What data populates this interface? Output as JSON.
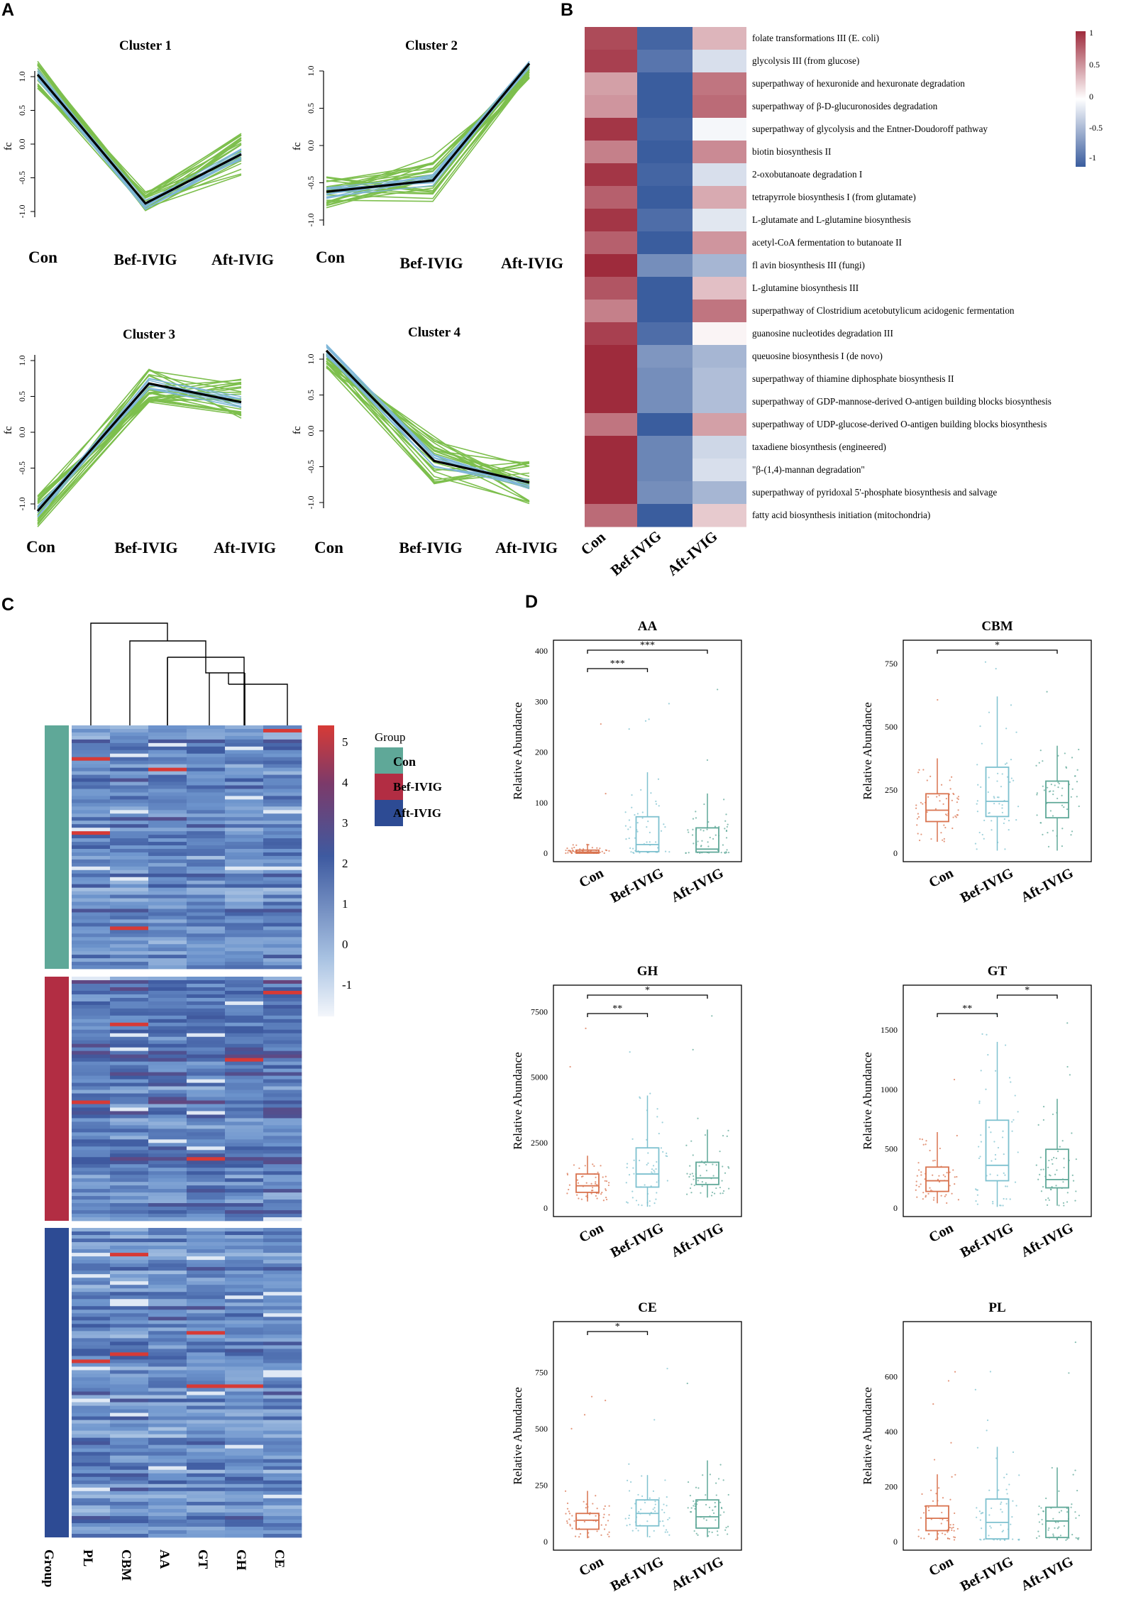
{
  "panels": {
    "A": {
      "letter": "A",
      "group_labels": [
        "Con",
        "Bef-IVIG",
        "Aft-IVIG"
      ],
      "y_axis_label": "fc",
      "y_ticks": [
        "1.0",
        "0.5",
        "0.0",
        "-0.5",
        "-1.0"
      ],
      "clusters": [
        {
          "title": "Cluster 1",
          "mean": [
            1.03,
            -0.88,
            -0.15
          ]
        },
        {
          "title": "Cluster 2",
          "mean": [
            -0.62,
            -0.47,
            1.1
          ]
        },
        {
          "title": "Cluster 3",
          "mean": [
            -1.1,
            0.68,
            0.42
          ]
        },
        {
          "title": "Cluster 4",
          "mean": [
            1.12,
            -0.42,
            -0.72
          ]
        }
      ]
    },
    "B": {
      "letter": "B",
      "columns": [
        "Con",
        "Bef-IVIG",
        "Aft-IVIG"
      ],
      "legend_ticks": [
        "1",
        "0.5",
        "0",
        "-0.5",
        "-1"
      ],
      "rows": [
        "folate transformations III (E. coli)",
        "glycolysis III (from glucose)",
        "superpathway of hexuronide and hexuronate degradation",
        "superpathway of &beta;-D-glucuronosides degradation",
        "superpathway of glycolysis and the Entner-Doudoroff pathway",
        "biotin biosynthesis II",
        "2-oxobutanoate degradation I",
        "tetrapyrrole biosynthesis I (from glutamate)",
        "L-glutamate and L-glutamine biosynthesis",
        "acetyl-CoA fermentation to butanoate II",
        "fl avin biosynthesis III (fungi)",
        "L-glutamine biosynthesis III",
        "superpathway of Clostridium acetobutylicum acidogenic fermentation",
        "guanosine nucleotides degradation III",
        "queuosine biosynthesis I (de novo)",
        "superpathway of thiamine diphosphate biosynthesis II",
        "superpathway of GDP-mannose-derived O-antigen building blocks biosynthesis",
        "superpathway of UDP-glucose-derived O-antigen building blocks biosynthesis",
        "taxadiene biosynthesis (engineered)",
        "\"&beta;-(1,4)-mannan degradation\"",
        "superpathway of pyridoxal 5'-phosphate biosynthesis and salvage",
        "fatty acid biosynthesis initiation (mitochondria)"
      ],
      "values": [
        [
          0.85,
          -0.95,
          0.35
        ],
        [
          0.9,
          -0.85,
          -0.2
        ],
        [
          0.45,
          -1.0,
          0.65
        ],
        [
          0.5,
          -1.0,
          0.7
        ],
        [
          0.95,
          -0.95,
          -0.05
        ],
        [
          0.6,
          -1.0,
          0.55
        ],
        [
          0.95,
          -0.95,
          -0.2
        ],
        [
          0.75,
          -1.0,
          0.4
        ],
        [
          0.95,
          -0.9,
          -0.15
        ],
        [
          0.75,
          -1.0,
          0.5
        ],
        [
          1.0,
          -0.7,
          -0.45
        ],
        [
          0.8,
          -1.0,
          0.3
        ],
        [
          0.6,
          -1.0,
          0.65
        ],
        [
          0.9,
          -0.9,
          0.05
        ],
        [
          1.0,
          -0.65,
          -0.45
        ],
        [
          1.0,
          -0.7,
          -0.4
        ],
        [
          1.0,
          -0.7,
          -0.4
        ],
        [
          0.65,
          -1.0,
          0.45
        ],
        [
          1.0,
          -0.75,
          -0.25
        ],
        [
          1.0,
          -0.75,
          -0.2
        ],
        [
          1.0,
          -0.7,
          -0.45
        ],
        [
          0.7,
          -1.0,
          0.25
        ]
      ]
    },
    "C": {
      "letter": "C",
      "legend_title": "Group",
      "groups": [
        {
          "name": "Con",
          "color": "#5fa898"
        },
        {
          "name": "Bef-IVIG",
          "color": "#b22d43"
        },
        {
          "name": "Aft-IVIG",
          "color": "#2d4b94"
        }
      ],
      "columns": [
        "PL",
        "CBM",
        "AA",
        "GT",
        "GH",
        "CE"
      ],
      "group_axis_label": "Group",
      "scale_ticks": [
        "5",
        "4",
        "3",
        "2",
        "1",
        "0",
        "-1"
      ]
    },
    "D": {
      "letter": "D",
      "y_axis_label": "Relative Abundance",
      "group_labels": [
        "Con",
        "Bef-IVIG",
        "Aft-IVIG"
      ],
      "colors": [
        "#d9734f",
        "#7ec1cf",
        "#5fa898"
      ],
      "plots": [
        {
          "title": "AA",
          "ymax": 410,
          "ticks": [
            0,
            100,
            200,
            300,
            400
          ],
          "boxes": [
            [
              0,
              0,
              2,
              6,
              18
            ],
            [
              0,
              3,
              17,
              72,
              160
            ],
            [
              0,
              2,
              8,
              50,
              118
            ]
          ],
          "sig": [
            {
              "from": 0,
              "to": 1,
              "label": "***"
            },
            {
              "from": 0,
              "to": 2,
              "label": "***"
            }
          ]
        },
        {
          "title": "CBM",
          "ymax": 820,
          "ticks": [
            0,
            250,
            500,
            750
          ],
          "boxes": [
            [
              45,
              125,
              170,
              235,
              375
            ],
            [
              10,
              145,
              205,
              340,
              620
            ],
            [
              10,
              140,
              200,
              285,
              425
            ]
          ],
          "sig": [
            {
              "from": 0,
              "to": 2,
              "label": "*"
            }
          ]
        },
        {
          "title": "GH",
          "ymax": 8300,
          "ticks": [
            0,
            2500,
            5000,
            7500
          ],
          "boxes": [
            [
              250,
              600,
              850,
              1300,
              2000
            ],
            [
              50,
              800,
              1300,
              2300,
              4300
            ],
            [
              400,
              900,
              1150,
              1750,
              3000
            ]
          ],
          "sig": [
            {
              "from": 0,
              "to": 1,
              "label": "**"
            },
            {
              "from": 0,
              "to": 2,
              "label": "*"
            }
          ]
        },
        {
          "title": "GT",
          "ymax": 1830,
          "ticks": [
            0,
            500,
            1000,
            1500
          ],
          "boxes": [
            [
              40,
              140,
              230,
              345,
              640
            ],
            [
              10,
              230,
              360,
              740,
              1400
            ],
            [
              20,
              170,
              240,
              495,
              920
            ]
          ],
          "sig": [
            {
              "from": 0,
              "to": 1,
              "label": "**"
            },
            {
              "from": 1,
              "to": 2,
              "label": "*"
            }
          ]
        },
        {
          "title": "CE",
          "ymax": 950,
          "ticks": [
            0,
            250,
            500,
            750
          ],
          "boxes": [
            [
              15,
              55,
              95,
              125,
              225
            ],
            [
              20,
              70,
              125,
              185,
              295
            ],
            [
              20,
              60,
              110,
              185,
              360
            ]
          ],
          "sig": [
            {
              "from": 0,
              "to": 1,
              "label": "*"
            }
          ]
        },
        {
          "title": "PL",
          "ymax": 780,
          "ticks": [
            0,
            200,
            400,
            600
          ],
          "boxes": [
            [
              5,
              40,
              85,
              130,
              245
            ],
            [
              5,
              10,
              70,
              155,
              345
            ],
            [
              5,
              15,
              75,
              125,
              270
            ]
          ],
          "sig": []
        }
      ]
    }
  }
}
